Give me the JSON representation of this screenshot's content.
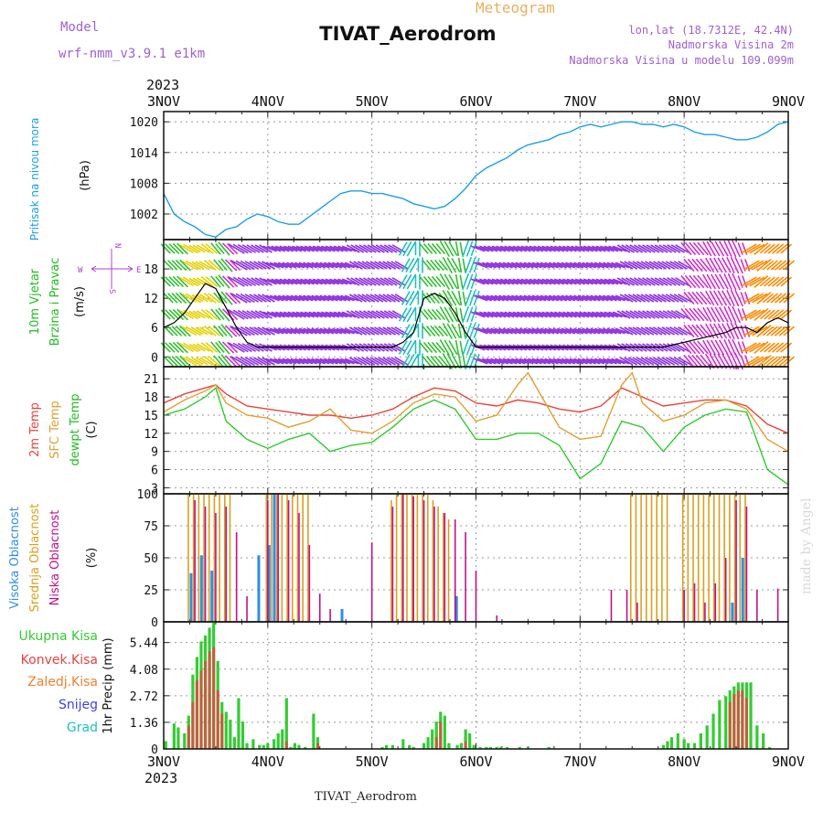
{
  "header": {
    "title": "TIVAT_Aerodrom",
    "subtitle": "Meteogram",
    "model_label": "Model",
    "model_value": "wrf-nmm_v3.9.1 e1km",
    "location_line1": "lon,lat (18.7312E, 42.4N)",
    "location_line2": "Nadmorska Visina 2m",
    "location_line3": "Nadmorska Visina u modelu 109.099m",
    "footer_station": "TIVAT_Aerodrom",
    "credit": "made by Angel"
  },
  "time_axis": {
    "year": "2023",
    "ticks": [
      "3NOV",
      "4NOV",
      "5NOV",
      "6NOV",
      "7NOV",
      "8NOV",
      "9NOV"
    ],
    "range_days": [
      3,
      9
    ]
  },
  "colors": {
    "pressure": "#1e9ee6",
    "wind_speed": "#000000",
    "temp_2m": "#e8443a",
    "temp_sfc": "#e0a030",
    "temp_dew": "#2ecc2e",
    "cloud_high": "#2e8fe6",
    "cloud_mid": "#d9a020",
    "cloud_low": "#c0108a",
    "precip_total": "#33cc33",
    "precip_conv": "#e84040",
    "precip_frozen": "#f08030",
    "precip_snow": "#4040e0",
    "precip_hail": "#20c0c0",
    "title_purple": "#a060d0",
    "meteogram_orange": "#e8b060"
  },
  "chart_data": [
    {
      "type": "line",
      "panel": "pressure",
      "ylabel": "Pritisak na nivou mora",
      "yunit": "(hPa)",
      "yticks": [
        "1002",
        "1008",
        "1014",
        "1020"
      ],
      "ylim": [
        997,
        1022
      ],
      "series": [
        {
          "name": "Pritisak na nivou mora",
          "x": [
            3.0,
            3.1,
            3.2,
            3.3,
            3.4,
            3.5,
            3.6,
            3.7,
            3.8,
            3.9,
            4.0,
            4.1,
            4.2,
            4.3,
            4.4,
            4.5,
            4.6,
            4.7,
            4.8,
            4.9,
            5.0,
            5.1,
            5.2,
            5.3,
            5.4,
            5.5,
            5.6,
            5.7,
            5.8,
            5.9,
            6.0,
            6.1,
            6.2,
            6.3,
            6.4,
            6.5,
            6.6,
            6.7,
            6.8,
            6.9,
            7.0,
            7.1,
            7.2,
            7.3,
            7.4,
            7.5,
            7.6,
            7.7,
            7.8,
            7.9,
            8.0,
            8.1,
            8.2,
            8.3,
            8.4,
            8.5,
            8.6,
            8.7,
            8.8,
            8.9,
            9.0
          ],
          "values": [
            1006,
            1002,
            1000.5,
            999.5,
            998,
            997.5,
            999,
            999.5,
            1001,
            1002,
            1001.5,
            1000.5,
            1000,
            1000,
            1001.5,
            1003,
            1004.5,
            1006,
            1006.5,
            1006.5,
            1006,
            1006,
            1005.5,
            1005,
            1004,
            1003.5,
            1003,
            1003.5,
            1005,
            1007,
            1009.5,
            1011,
            1012,
            1013,
            1014.5,
            1015.5,
            1016,
            1016.5,
            1017.5,
            1018,
            1019,
            1019.5,
            1019,
            1019.5,
            1020,
            1020,
            1019.5,
            1019.5,
            1019,
            1019.5,
            1019,
            1018,
            1017.5,
            1017.5,
            1017,
            1016.5,
            1016.5,
            1017,
            1018,
            1019.5,
            1020
          ]
        }
      ]
    },
    {
      "type": "line",
      "panel": "wind",
      "ylabel": "10m Vjetar Brzina i Pravac",
      "yunit": "(m/s)",
      "yticks": [
        "0",
        "6",
        "12",
        "18"
      ],
      "ylim": [
        -2,
        24
      ],
      "compass": {
        "n": "N",
        "s": "S",
        "e": "E",
        "w": "W"
      },
      "series": [
        {
          "name": "Brzina",
          "x": [
            3.0,
            3.1,
            3.2,
            3.3,
            3.4,
            3.5,
            3.6,
            3.7,
            3.8,
            3.9,
            4.0,
            4.2,
            4.4,
            4.6,
            4.8,
            5.0,
            5.2,
            5.3,
            5.4,
            5.5,
            5.6,
            5.7,
            5.8,
            5.9,
            6.0,
            6.3,
            6.6,
            7.0,
            7.4,
            7.8,
            8.0,
            8.2,
            8.4,
            8.5,
            8.6,
            8.7,
            8.8,
            8.9,
            9.0
          ],
          "values": [
            6,
            7,
            9,
            12,
            15,
            14,
            10,
            6,
            3,
            2,
            2,
            2,
            2,
            2,
            2,
            2,
            2,
            3,
            5,
            12,
            13,
            12,
            9,
            5,
            2,
            2,
            2,
            2,
            2,
            2,
            3,
            4,
            5,
            6,
            6,
            5,
            7,
            8,
            7
          ]
        }
      ],
      "wind_direction_deg": [
        135,
        135,
        120,
        120,
        130,
        140,
        315,
        300,
        300,
        300,
        290,
        290,
        290,
        290,
        300,
        300,
        300,
        210,
        180,
        140,
        140,
        150,
        170,
        200,
        290,
        290,
        290,
        290,
        300,
        300,
        320,
        330,
        335,
        340,
        60,
        50,
        50,
        50,
        50
      ]
    },
    {
      "type": "line",
      "panel": "temperature",
      "ylabel": "2m Temp / SFC Temp / dewpt Temp",
      "yunit": "(C)",
      "yticks": [
        "3",
        "6",
        "9",
        "12",
        "15",
        "18",
        "21"
      ],
      "ylim": [
        2,
        23
      ],
      "series": [
        {
          "name": "2m Temp",
          "x": [
            3.0,
            3.2,
            3.4,
            3.5,
            3.6,
            3.8,
            4.0,
            4.2,
            4.4,
            4.6,
            4.8,
            5.0,
            5.2,
            5.4,
            5.6,
            5.8,
            6.0,
            6.2,
            6.4,
            6.6,
            6.8,
            7.0,
            7.2,
            7.4,
            7.6,
            7.8,
            8.0,
            8.2,
            8.4,
            8.6,
            8.8,
            9.0
          ],
          "values": [
            17,
            18.5,
            19.5,
            20,
            18.5,
            16.5,
            16,
            15.5,
            15,
            15,
            14.5,
            15,
            16,
            18,
            19.5,
            19,
            17,
            16.5,
            17.5,
            17,
            16,
            15.5,
            16.5,
            19.5,
            18,
            16.5,
            17,
            17.5,
            17.5,
            16.5,
            13.5,
            12
          ]
        },
        {
          "name": "SFC Temp",
          "x": [
            3.0,
            3.2,
            3.4,
            3.5,
            3.6,
            3.8,
            4.0,
            4.2,
            4.4,
            4.6,
            4.8,
            5.0,
            5.2,
            5.4,
            5.6,
            5.8,
            6.0,
            6.2,
            6.4,
            6.5,
            6.6,
            6.8,
            7.0,
            7.2,
            7.4,
            7.5,
            7.6,
            7.8,
            8.0,
            8.2,
            8.4,
            8.6,
            8.8,
            9.0
          ],
          "values": [
            15.5,
            17.5,
            19,
            20,
            17,
            15,
            14.5,
            13,
            14,
            16,
            12.5,
            12,
            14,
            17,
            18.5,
            18,
            14,
            15,
            20,
            22,
            19,
            13,
            11,
            11.5,
            20,
            22,
            17,
            14,
            15,
            17,
            17.5,
            16,
            11,
            9
          ]
        },
        {
          "name": "dewpt Temp",
          "x": [
            3.0,
            3.2,
            3.4,
            3.5,
            3.6,
            3.8,
            4.0,
            4.2,
            4.4,
            4.6,
            4.8,
            5.0,
            5.2,
            5.4,
            5.6,
            5.8,
            6.0,
            6.2,
            6.4,
            6.6,
            6.8,
            7.0,
            7.2,
            7.4,
            7.6,
            7.8,
            8.0,
            8.2,
            8.4,
            8.6,
            8.8,
            9.0
          ],
          "values": [
            15,
            16,
            18,
            19.5,
            14,
            11,
            9.5,
            11,
            12,
            9,
            10,
            10.5,
            13,
            16,
            17.5,
            16,
            11,
            11,
            12,
            12,
            10,
            4.5,
            7,
            14,
            13,
            9,
            13,
            15,
            16,
            15.5,
            6,
            3.5
          ]
        }
      ]
    },
    {
      "type": "bar",
      "panel": "clouds",
      "ylabel": "Visoka Oblacnost / Srednja Oblacnost / Niska Oblacnost",
      "yunit": "(%)",
      "yticks": [
        "0",
        "25",
        "50",
        "75",
        "100"
      ],
      "ylim": [
        0,
        100
      ],
      "series": [
        {
          "name": "Visoka Oblacnost",
          "x": [
            3.25,
            3.35,
            3.45,
            3.9,
            4.0,
            4.05,
            4.7,
            5.8,
            8.45,
            8.55
          ],
          "values": [
            38,
            52,
            40,
            52,
            60,
            100,
            10,
            20,
            15,
            50
          ]
        },
        {
          "name": "Srednja Oblacnost",
          "x": [
            3.25,
            3.3,
            3.35,
            3.4,
            3.45,
            3.5,
            3.55,
            3.6,
            3.65,
            4.0,
            4.05,
            4.1,
            4.15,
            4.2,
            4.25,
            4.3,
            4.35,
            4.4,
            5.2,
            5.25,
            5.3,
            5.35,
            5.4,
            5.45,
            5.5,
            5.55,
            5.6,
            5.65,
            5.7,
            5.75,
            7.5,
            7.55,
            7.6,
            7.65,
            7.7,
            7.75,
            7.8,
            7.85,
            8.0,
            8.05,
            8.1,
            8.15,
            8.2,
            8.25,
            8.3,
            8.35,
            8.4,
            8.45,
            8.5,
            8.55,
            8.6
          ],
          "values": [
            100,
            100,
            100,
            100,
            100,
            100,
            100,
            100,
            100,
            100,
            100,
            100,
            100,
            100,
            100,
            100,
            100,
            100,
            95,
            100,
            100,
            100,
            100,
            100,
            100,
            100,
            95,
            90,
            85,
            80,
            100,
            100,
            100,
            100,
            100,
            100,
            100,
            100,
            100,
            100,
            100,
            100,
            100,
            100,
            100,
            100,
            100,
            100,
            100,
            100,
            100
          ]
        },
        {
          "name": "Niska Oblacnost",
          "x": [
            3.3,
            3.4,
            3.5,
            3.6,
            3.7,
            3.8,
            4.0,
            4.1,
            4.2,
            4.3,
            4.4,
            4.5,
            4.6,
            5.0,
            5.2,
            5.3,
            5.4,
            5.5,
            5.6,
            5.7,
            5.8,
            5.9,
            6.0,
            6.2,
            7.3,
            7.45,
            7.55,
            8.0,
            8.1,
            8.2,
            8.3,
            8.4,
            8.5,
            8.6,
            8.7,
            8.9
          ],
          "values": [
            95,
            90,
            85,
            90,
            70,
            20,
            95,
            100,
            95,
            85,
            60,
            22,
            10,
            62,
            90,
            100,
            98,
            95,
            90,
            85,
            80,
            70,
            40,
            5,
            25,
            25,
            15,
            25,
            30,
            15,
            30,
            50,
            95,
            90,
            25,
            26
          ]
        }
      ]
    },
    {
      "type": "bar",
      "panel": "precipitation",
      "ylabel": "1hr Precip (mm)",
      "yticks": [
        "0",
        "1.36",
        "2.72",
        "4.08",
        "5.44"
      ],
      "ylim": [
        0,
        6.5
      ],
      "legend": [
        "Ukupna Kisa",
        "Konvek.Kisa",
        "Zaledj.Kisa",
        "Snijeg",
        "Grad"
      ],
      "series": [
        {
          "name": "Ukupna Kisa",
          "x": [
            3.02,
            3.1,
            3.14,
            3.2,
            3.24,
            3.28,
            3.32,
            3.36,
            3.4,
            3.44,
            3.48,
            3.52,
            3.56,
            3.6,
            3.64,
            3.68,
            3.72,
            3.76,
            3.8,
            3.86,
            3.92,
            3.96,
            4.0,
            4.06,
            4.1,
            4.14,
            4.18,
            4.22,
            4.26,
            4.3,
            4.36,
            4.44,
            4.48,
            5.1,
            5.14,
            5.2,
            5.3,
            5.36,
            5.4,
            5.5,
            5.54,
            5.58,
            5.62,
            5.66,
            5.7,
            5.74,
            5.82,
            5.86,
            5.9,
            5.94,
            5.98,
            6.04,
            6.1,
            6.14,
            6.2,
            6.24,
            6.3,
            6.42,
            6.5,
            6.7,
            7.8,
            7.84,
            7.88,
            7.94,
            8.0,
            8.04,
            8.1,
            8.16,
            8.22,
            8.28,
            8.34,
            8.4,
            8.44,
            8.48,
            8.52,
            8.56,
            8.6,
            8.64,
            8.7,
            8.76,
            8.82
          ],
          "values": [
            0.4,
            1.3,
            1.1,
            0.8,
            1.7,
            3.8,
            4.7,
            5.5,
            5.8,
            6.2,
            6.5,
            4.5,
            2.4,
            1.9,
            1.5,
            0.6,
            2.6,
            1.4,
            0.3,
            0.5,
            0.2,
            0.2,
            0.3,
            0.5,
            0.8,
            1.0,
            2.6,
            0.1,
            0.3,
            0.2,
            0.1,
            1.8,
            0.6,
            0.1,
            0.2,
            0.2,
            0.5,
            0.2,
            0.1,
            0.3,
            0.6,
            1.0,
            1.4,
            1.9,
            1.7,
            0.3,
            0.2,
            0.3,
            1.0,
            0.8,
            0.2,
            0.1,
            0.1,
            0.1,
            0.1,
            0.1,
            0.1,
            0.1,
            0.1,
            0.1,
            0.2,
            0.4,
            0.6,
            0.8,
            0.5,
            0.3,
            0.3,
            0.8,
            1.2,
            1.8,
            2.5,
            2.7,
            3.0,
            3.2,
            3.4,
            3.4,
            3.4,
            3.4,
            1.2,
            0.8,
            0.1
          ]
        },
        {
          "name": "Konvek.Kisa",
          "x": [
            3.24,
            3.28,
            3.32,
            3.36,
            3.4,
            3.44,
            3.48,
            3.52,
            3.56,
            4.18,
            4.48,
            5.62,
            5.66,
            5.9,
            8.44,
            8.48,
            8.52,
            8.56,
            8.6
          ],
          "values": [
            1.2,
            2.4,
            3.5,
            4.0,
            4.5,
            5.0,
            5.2,
            3.0,
            1.8,
            0.4,
            0.3,
            0.6,
            1.4,
            0.4,
            2.4,
            2.8,
            3.0,
            3.0,
            2.6
          ]
        },
        {
          "name": "Zaledj.Kisa",
          "x": [],
          "values": []
        },
        {
          "name": "Snijeg",
          "x": [],
          "values": []
        },
        {
          "name": "Grad",
          "x": [],
          "values": []
        }
      ]
    }
  ]
}
